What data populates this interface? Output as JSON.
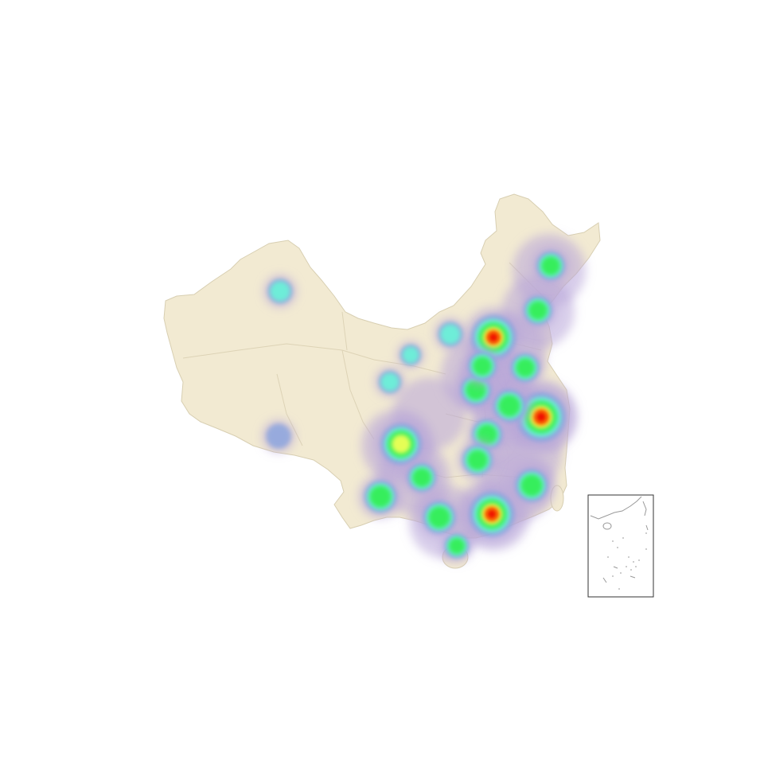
{
  "map": {
    "land_color": "#f2ead2",
    "border_color": "#d8cfb2",
    "inset_border_color": "#333333"
  },
  "heatmap": {
    "palette": [
      "#b8a6d8",
      "#7fa0e0",
      "#6cf0d8",
      "#33ee55",
      "#eeff55",
      "#ff8800",
      "#ee1100"
    ],
    "hotspots": [
      {
        "name": "beijing",
        "intensity": 1.0
      },
      {
        "name": "shanghai-jiangsu",
        "intensity": 1.0
      },
      {
        "name": "guangzhou-shenzhen",
        "intensity": 1.0
      },
      {
        "name": "chengdu-chongqing",
        "intensity": 0.8
      },
      {
        "name": "hefei",
        "intensity": 0.55
      },
      {
        "name": "zhengzhou",
        "intensity": 0.55
      },
      {
        "name": "wuhan",
        "intensity": 0.55
      },
      {
        "name": "changsha",
        "intensity": 0.55
      },
      {
        "name": "xiamen-fuzhou",
        "intensity": 0.55
      },
      {
        "name": "kunming",
        "intensity": 0.55
      },
      {
        "name": "nanning",
        "intensity": 0.55
      },
      {
        "name": "haikou",
        "intensity": 0.45
      },
      {
        "name": "shenyang",
        "intensity": 0.55
      },
      {
        "name": "harbin",
        "intensity": 0.45
      },
      {
        "name": "jinan",
        "intensity": 0.5
      },
      {
        "name": "shijiazhuang",
        "intensity": 0.5
      },
      {
        "name": "guiyang",
        "intensity": 0.45
      },
      {
        "name": "urumqi",
        "intensity": 0.38
      },
      {
        "name": "hohhot",
        "intensity": 0.38
      },
      {
        "name": "yinchuan",
        "intensity": 0.3
      },
      {
        "name": "lanzhou",
        "intensity": 0.3
      },
      {
        "name": "lhasa",
        "intensity": 0.1
      }
    ]
  }
}
